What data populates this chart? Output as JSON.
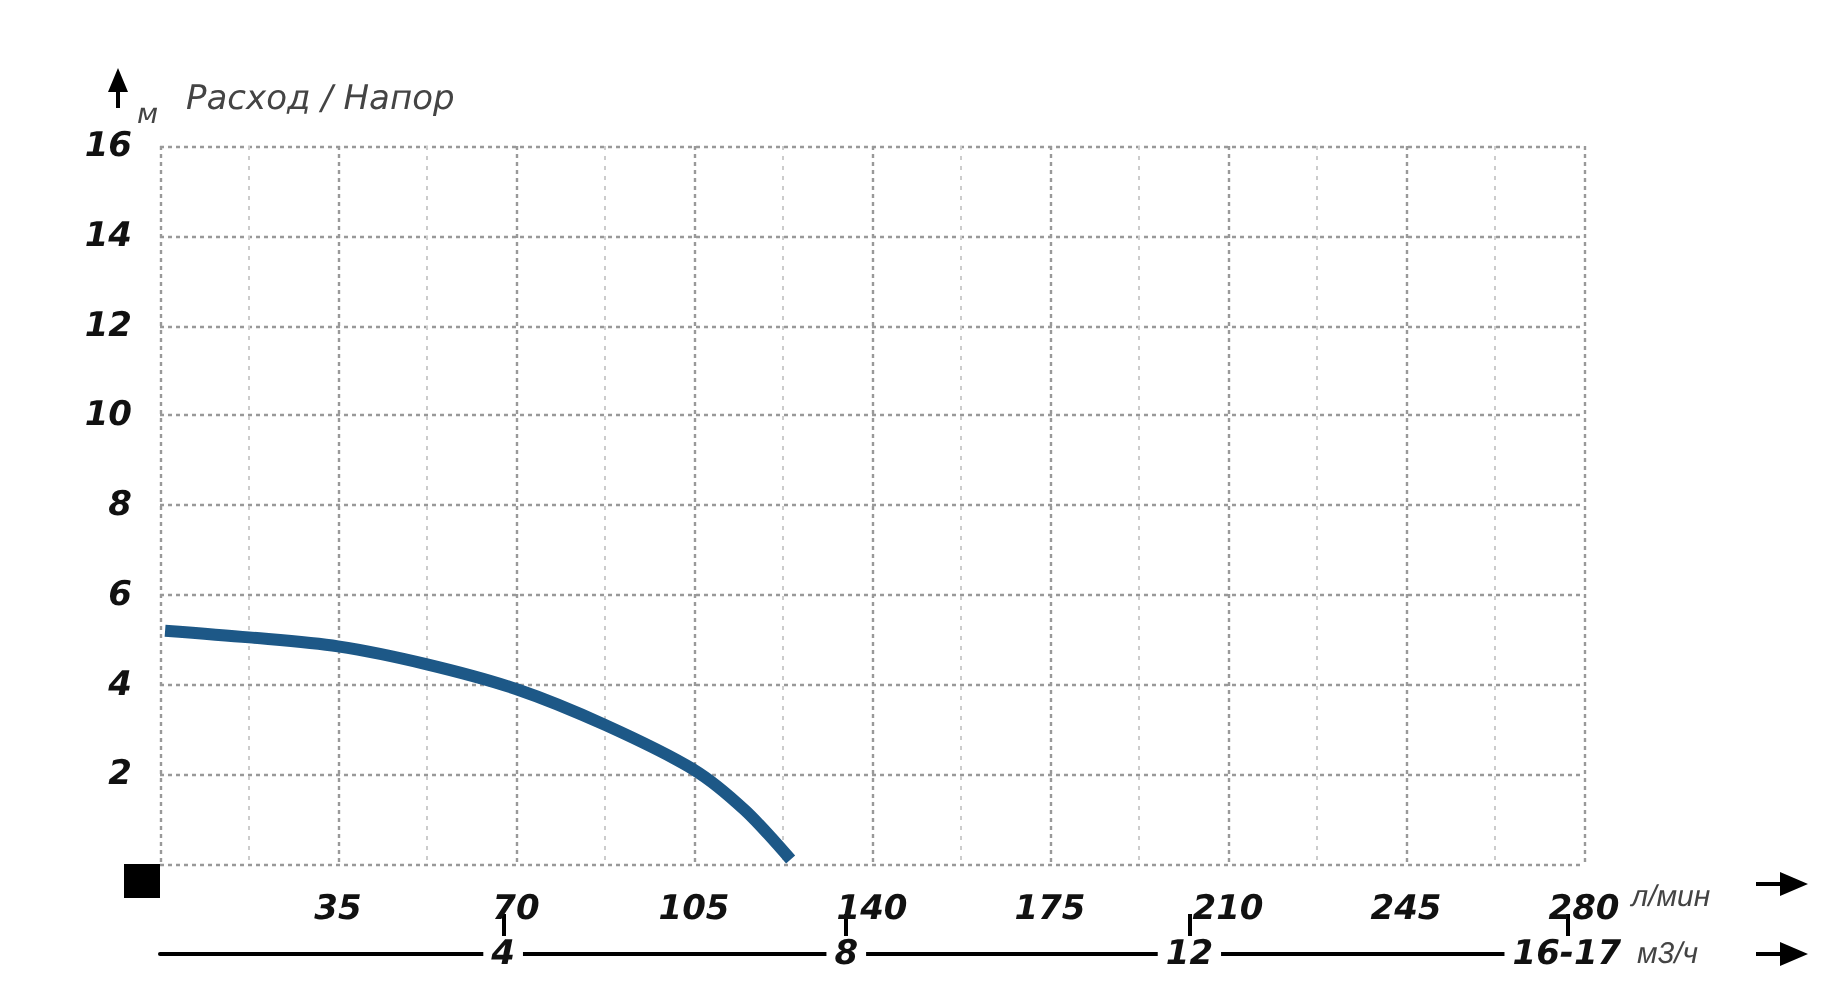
{
  "chart_data": {
    "type": "line",
    "title": "Расход / Напор",
    "ylabel": "м",
    "xlabel": "л/мин",
    "x2label": "м3/ч",
    "x": [
      1,
      17.5,
      35,
      52.5,
      70,
      87.5,
      105,
      115,
      124
    ],
    "series": [
      {
        "color": "#1d5887",
        "values": [
          5.2,
          5.05,
          4.85,
          4.45,
          3.9,
          3.1,
          2.1,
          1.2,
          0.1
        ]
      }
    ],
    "xlim": [
      0,
      280
    ],
    "xticks": [
      35,
      70,
      105,
      140,
      175,
      210,
      245,
      280
    ],
    "ylim": [
      0,
      16
    ],
    "yticks": [
      2,
      4,
      6,
      8,
      10,
      12,
      14,
      16
    ],
    "x2lim": [
      0,
      16.6
    ],
    "x2ticks": [
      4,
      8,
      12,
      {
        "value": 16.4,
        "label": "16-17"
      }
    ],
    "grid": true,
    "marker": "none",
    "line_style": "solid"
  }
}
